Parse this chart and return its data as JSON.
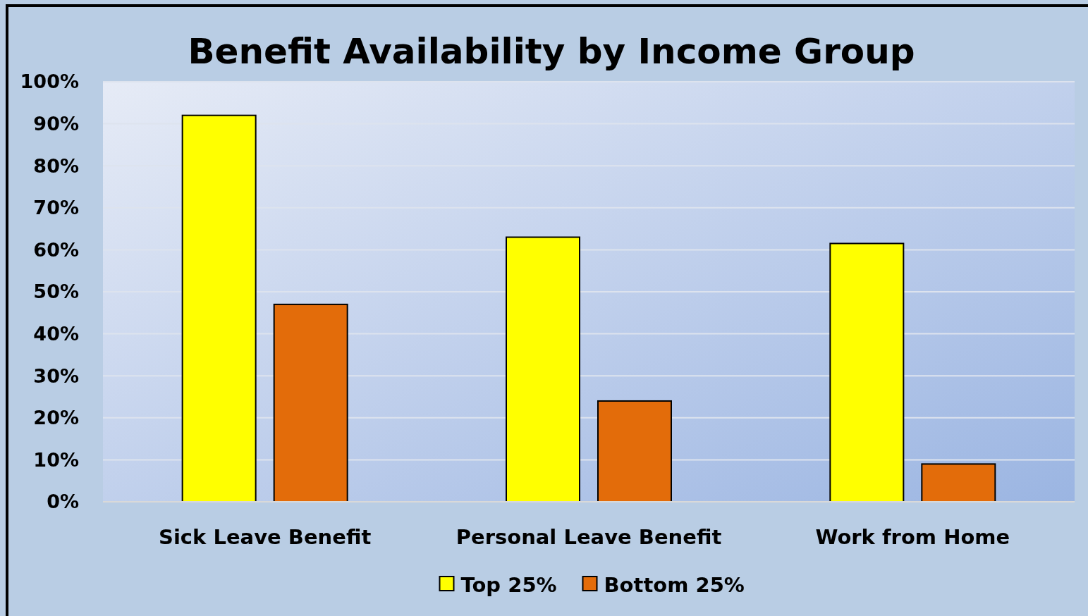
{
  "chart_data": {
    "type": "bar",
    "title": "Benefit Availability by Income Group",
    "categories": [
      "Sick Leave Benefit",
      "Personal Leave Benefit",
      "Work from Home"
    ],
    "series": [
      {
        "name": "Top 25%",
        "color": "#ffff00",
        "values": [
          92,
          63,
          61.5
        ]
      },
      {
        "name": "Bottom 25%",
        "color": "#e36c0a",
        "values": [
          47,
          24,
          9
        ]
      }
    ],
    "ylim": [
      0,
      100
    ],
    "yticks": [
      {
        "value": 0,
        "label": "0%"
      },
      {
        "value": 10,
        "label": "10%"
      },
      {
        "value": 20,
        "label": "20%"
      },
      {
        "value": 30,
        "label": "30%"
      },
      {
        "value": 40,
        "label": "40%"
      },
      {
        "value": 50,
        "label": "50%"
      },
      {
        "value": 60,
        "label": "60%"
      },
      {
        "value": 70,
        "label": "70%"
      },
      {
        "value": 80,
        "label": "80%"
      },
      {
        "value": 90,
        "label": "90%"
      },
      {
        "value": 100,
        "label": "100%"
      }
    ],
    "grid": "y",
    "legend": "bottom"
  }
}
